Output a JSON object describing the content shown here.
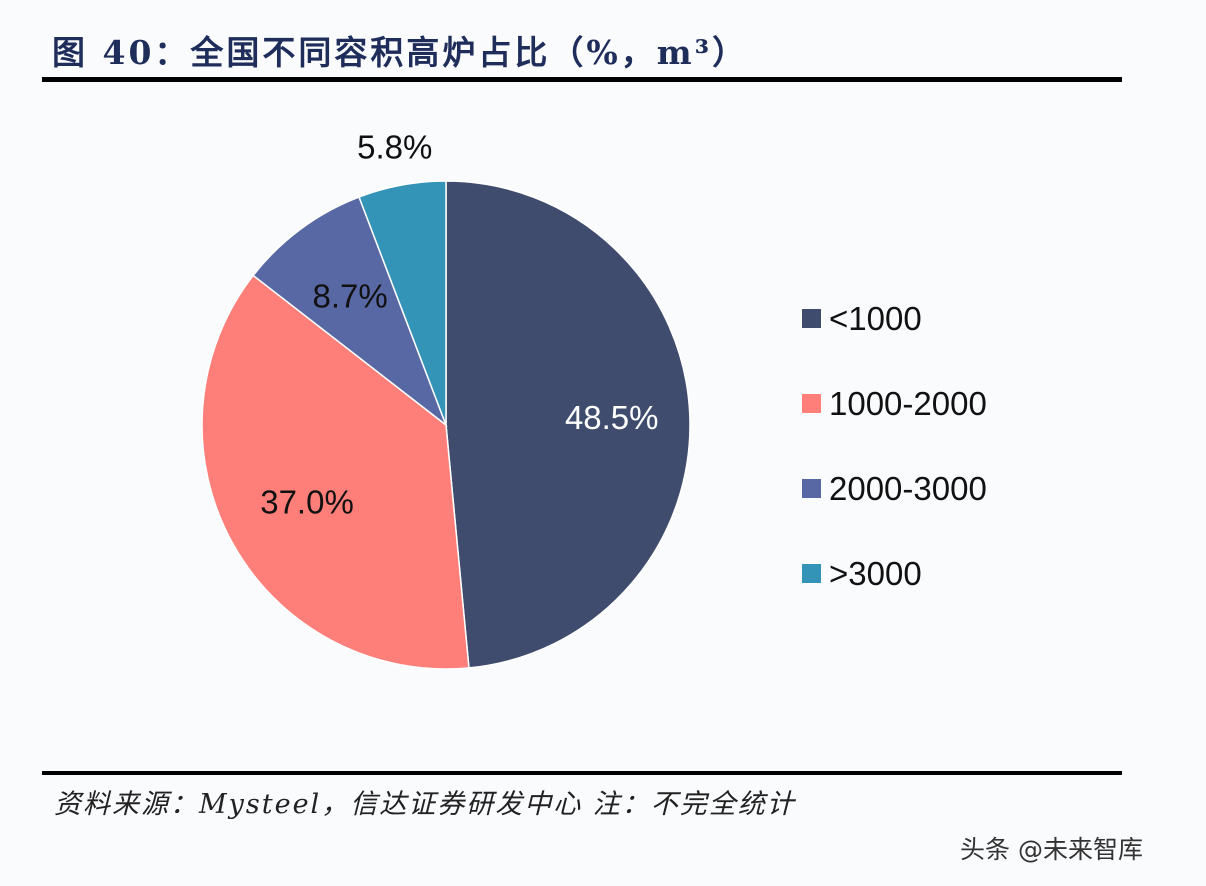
{
  "title": "图 40：全国不同容积高炉占比（%，m³）",
  "source": "资料来源：Mysteel，信达证券研发中心 注：不完全统计",
  "watermark": "头条 @未来智库",
  "chart_data": {
    "type": "pie",
    "start": "12 o'clock, clockwise",
    "categories": [
      "<1000",
      "1000-2000",
      "2000-3000",
      ">3000"
    ],
    "values": [
      48.5,
      37.0,
      8.7,
      5.8
    ],
    "labels": [
      "48.5%",
      "37.0%",
      "8.7%",
      "5.8%"
    ],
    "colors": [
      "#404c6e",
      "#fe7f79",
      "#5868a4",
      "#3394b8"
    ],
    "label_colors": [
      "#ffffff",
      "#111111",
      "#111111",
      "#111111"
    ],
    "legend_position": "right"
  }
}
